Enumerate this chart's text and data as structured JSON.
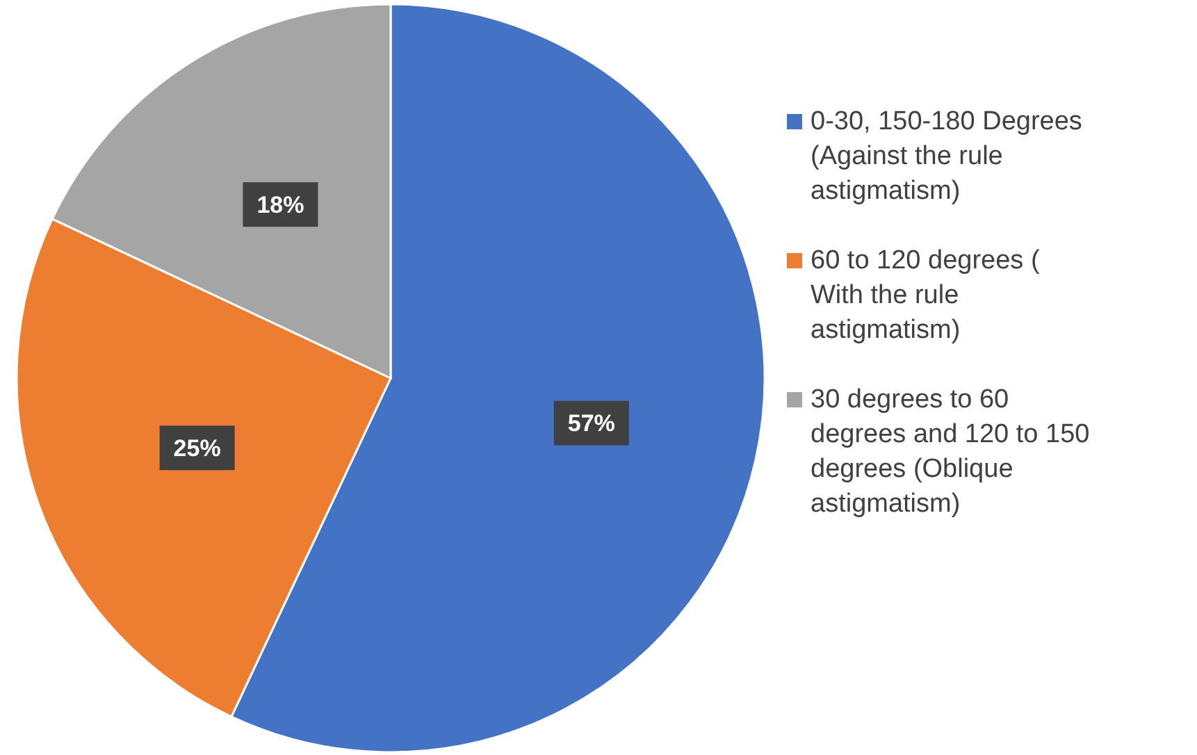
{
  "chart_data": {
    "type": "pie",
    "categories": [
      "0-30, 150-180 Degrees (Against the rule astigmatism)",
      "60 to 120 degrees ( With the rule astigmatism)",
      "30 degrees to 60 degrees and 120 to 150 degrees (Oblique astigmatism)"
    ],
    "values": [
      57,
      25,
      18
    ],
    "colors": [
      "#4472c4",
      "#ed7d31",
      "#a5a5a5"
    ],
    "value_labels": [
      "57%",
      "25%",
      "18%"
    ],
    "legend": "right"
  }
}
